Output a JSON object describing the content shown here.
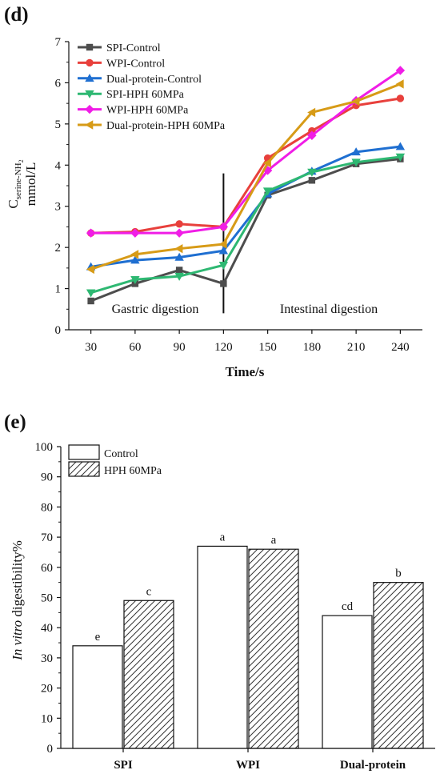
{
  "panel_d_label": "(d)",
  "panel_e_label": "(e)",
  "chart_data": [
    {
      "type": "line",
      "xlabel": "Time/s",
      "ylabel_main": "C",
      "ylabel_sub": "serine-NH",
      "ylabel_sub2": "2",
      "ylabel_unit": "mmol/L",
      "x": [
        30,
        60,
        90,
        120,
        150,
        180,
        210,
        240
      ],
      "xticks": [
        "30",
        "60",
        "90",
        "120",
        "150",
        "180",
        "210",
        "240"
      ],
      "xlim": [
        15,
        255
      ],
      "ylim": [
        0,
        7
      ],
      "yticks": [
        "0",
        "1",
        "2",
        "3",
        "4",
        "5",
        "6",
        "7"
      ],
      "annotations": [
        "Gastric digestion",
        "Intestinal digestion"
      ],
      "divider_x": 120,
      "series": [
        {
          "name": "SPI-Control",
          "color": "#4d4d4d",
          "marker": "square",
          "values": [
            0.7,
            1.12,
            1.45,
            1.12,
            3.27,
            3.63,
            4.03,
            4.15
          ]
        },
        {
          "name": "WPI-Control",
          "color": "#e8403c",
          "marker": "circle",
          "values": [
            2.35,
            2.38,
            2.57,
            2.5,
            4.17,
            4.83,
            5.45,
            5.62
          ]
        },
        {
          "name": "Dual-protein-Control",
          "color": "#1f6fd1",
          "marker": "triangle-up",
          "values": [
            1.53,
            1.69,
            1.76,
            1.92,
            3.3,
            3.85,
            4.32,
            4.45
          ]
        },
        {
          "name": "SPI-HPH 60MPa",
          "color": "#2eb872",
          "marker": "triangle-down",
          "values": [
            0.9,
            1.22,
            1.3,
            1.57,
            3.37,
            3.83,
            4.07,
            4.2
          ]
        },
        {
          "name": "WPI-HPH 60MPa",
          "color": "#f01de6",
          "marker": "diamond",
          "values": [
            2.35,
            2.35,
            2.35,
            2.5,
            3.87,
            4.72,
            5.57,
            6.3
          ]
        },
        {
          "name": "Dual-protein-HPH 60MPa",
          "color": "#d79b17",
          "marker": "triangle-left",
          "values": [
            1.47,
            1.83,
            1.97,
            2.08,
            4.05,
            5.28,
            5.55,
            5.97
          ]
        }
      ]
    },
    {
      "type": "bar",
      "ylabel_italic": "In vitro",
      "ylabel_rest": " digestibility%",
      "categories": [
        "SPI",
        "WPI",
        "Dual-protein"
      ],
      "ylim": [
        0,
        100
      ],
      "yticks": [
        "0",
        "10",
        "20",
        "30",
        "40",
        "50",
        "60",
        "70",
        "80",
        "90",
        "100"
      ],
      "series": [
        {
          "name": "Control",
          "fill": "plain",
          "values": [
            34,
            67,
            44
          ],
          "labels": [
            "e",
            "a",
            "cd"
          ]
        },
        {
          "name": "HPH 60MPa",
          "fill": "hatched",
          "values": [
            49,
            66,
            55
          ],
          "labels": [
            "c",
            "a",
            "b"
          ]
        }
      ]
    }
  ]
}
